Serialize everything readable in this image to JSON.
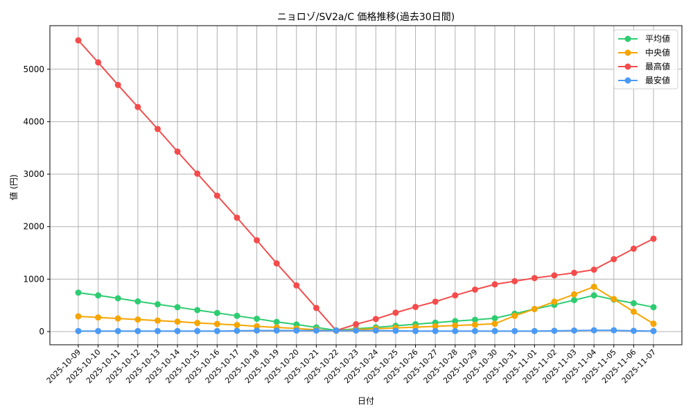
{
  "chart_data": {
    "type": "line",
    "title": "ニョロゾ/SV2a/C 価格推移(過去30日間)",
    "xlabel": "日付",
    "ylabel": "値 (円)",
    "ylim": [
      -250,
      5850
    ],
    "yticks": [
      0,
      1000,
      2000,
      3000,
      4000,
      5000
    ],
    "grid": true,
    "legend_position": "upper right",
    "categories": [
      "2025-10-09",
      "2025-10-10",
      "2025-10-11",
      "2025-10-12",
      "2025-10-13",
      "2025-10-14",
      "2025-10-15",
      "2025-10-16",
      "2025-10-17",
      "2025-10-18",
      "2025-10-19",
      "2025-10-20",
      "2025-10-21",
      "2025-10-22",
      "2025-10-23",
      "2025-10-24",
      "2025-10-25",
      "2025-10-26",
      "2025-10-27",
      "2025-10-28",
      "2025-10-29",
      "2025-10-30",
      "2025-10-31",
      "2025-11-01",
      "2025-11-02",
      "2025-11-03",
      "2025-11-04",
      "2025-11-05",
      "2025-11-06",
      "2025-11-07"
    ],
    "series": [
      {
        "name": "平均値",
        "color": "#2ecc71",
        "values": [
          742,
          690,
          635,
          575,
          520,
          465,
          410,
          355,
          300,
          245,
          185,
          135,
          80,
          25,
          55,
          80,
          110,
          140,
          170,
          200,
          225,
          255,
          340,
          430,
          510,
          600,
          690,
          610,
          540,
          465
        ]
      },
      {
        "name": "中央値",
        "color": "#f5a500",
        "values": [
          290,
          270,
          250,
          230,
          210,
          190,
          165,
          145,
          125,
          100,
          80,
          60,
          35,
          15,
          40,
          55,
          70,
          85,
          100,
          115,
          130,
          150,
          300,
          430,
          570,
          710,
          855,
          620,
          380,
          150
        ]
      },
      {
        "name": "最高値",
        "color": "#f44c4c",
        "values": [
          5550,
          5130,
          4700,
          4280,
          3860,
          3430,
          3010,
          2590,
          2170,
          1740,
          1300,
          880,
          450,
          20,
          140,
          240,
          360,
          470,
          570,
          690,
          800,
          900,
          960,
          1020,
          1070,
          1120,
          1180,
          1380,
          1580,
          1770
        ]
      },
      {
        "name": "最安値",
        "color": "#4a9af5",
        "values": [
          10,
          10,
          10,
          10,
          10,
          10,
          10,
          10,
          15,
          20,
          20,
          20,
          20,
          20,
          20,
          20,
          15,
          10,
          10,
          10,
          10,
          10,
          10,
          10,
          15,
          20,
          25,
          25,
          15,
          10
        ]
      }
    ]
  }
}
